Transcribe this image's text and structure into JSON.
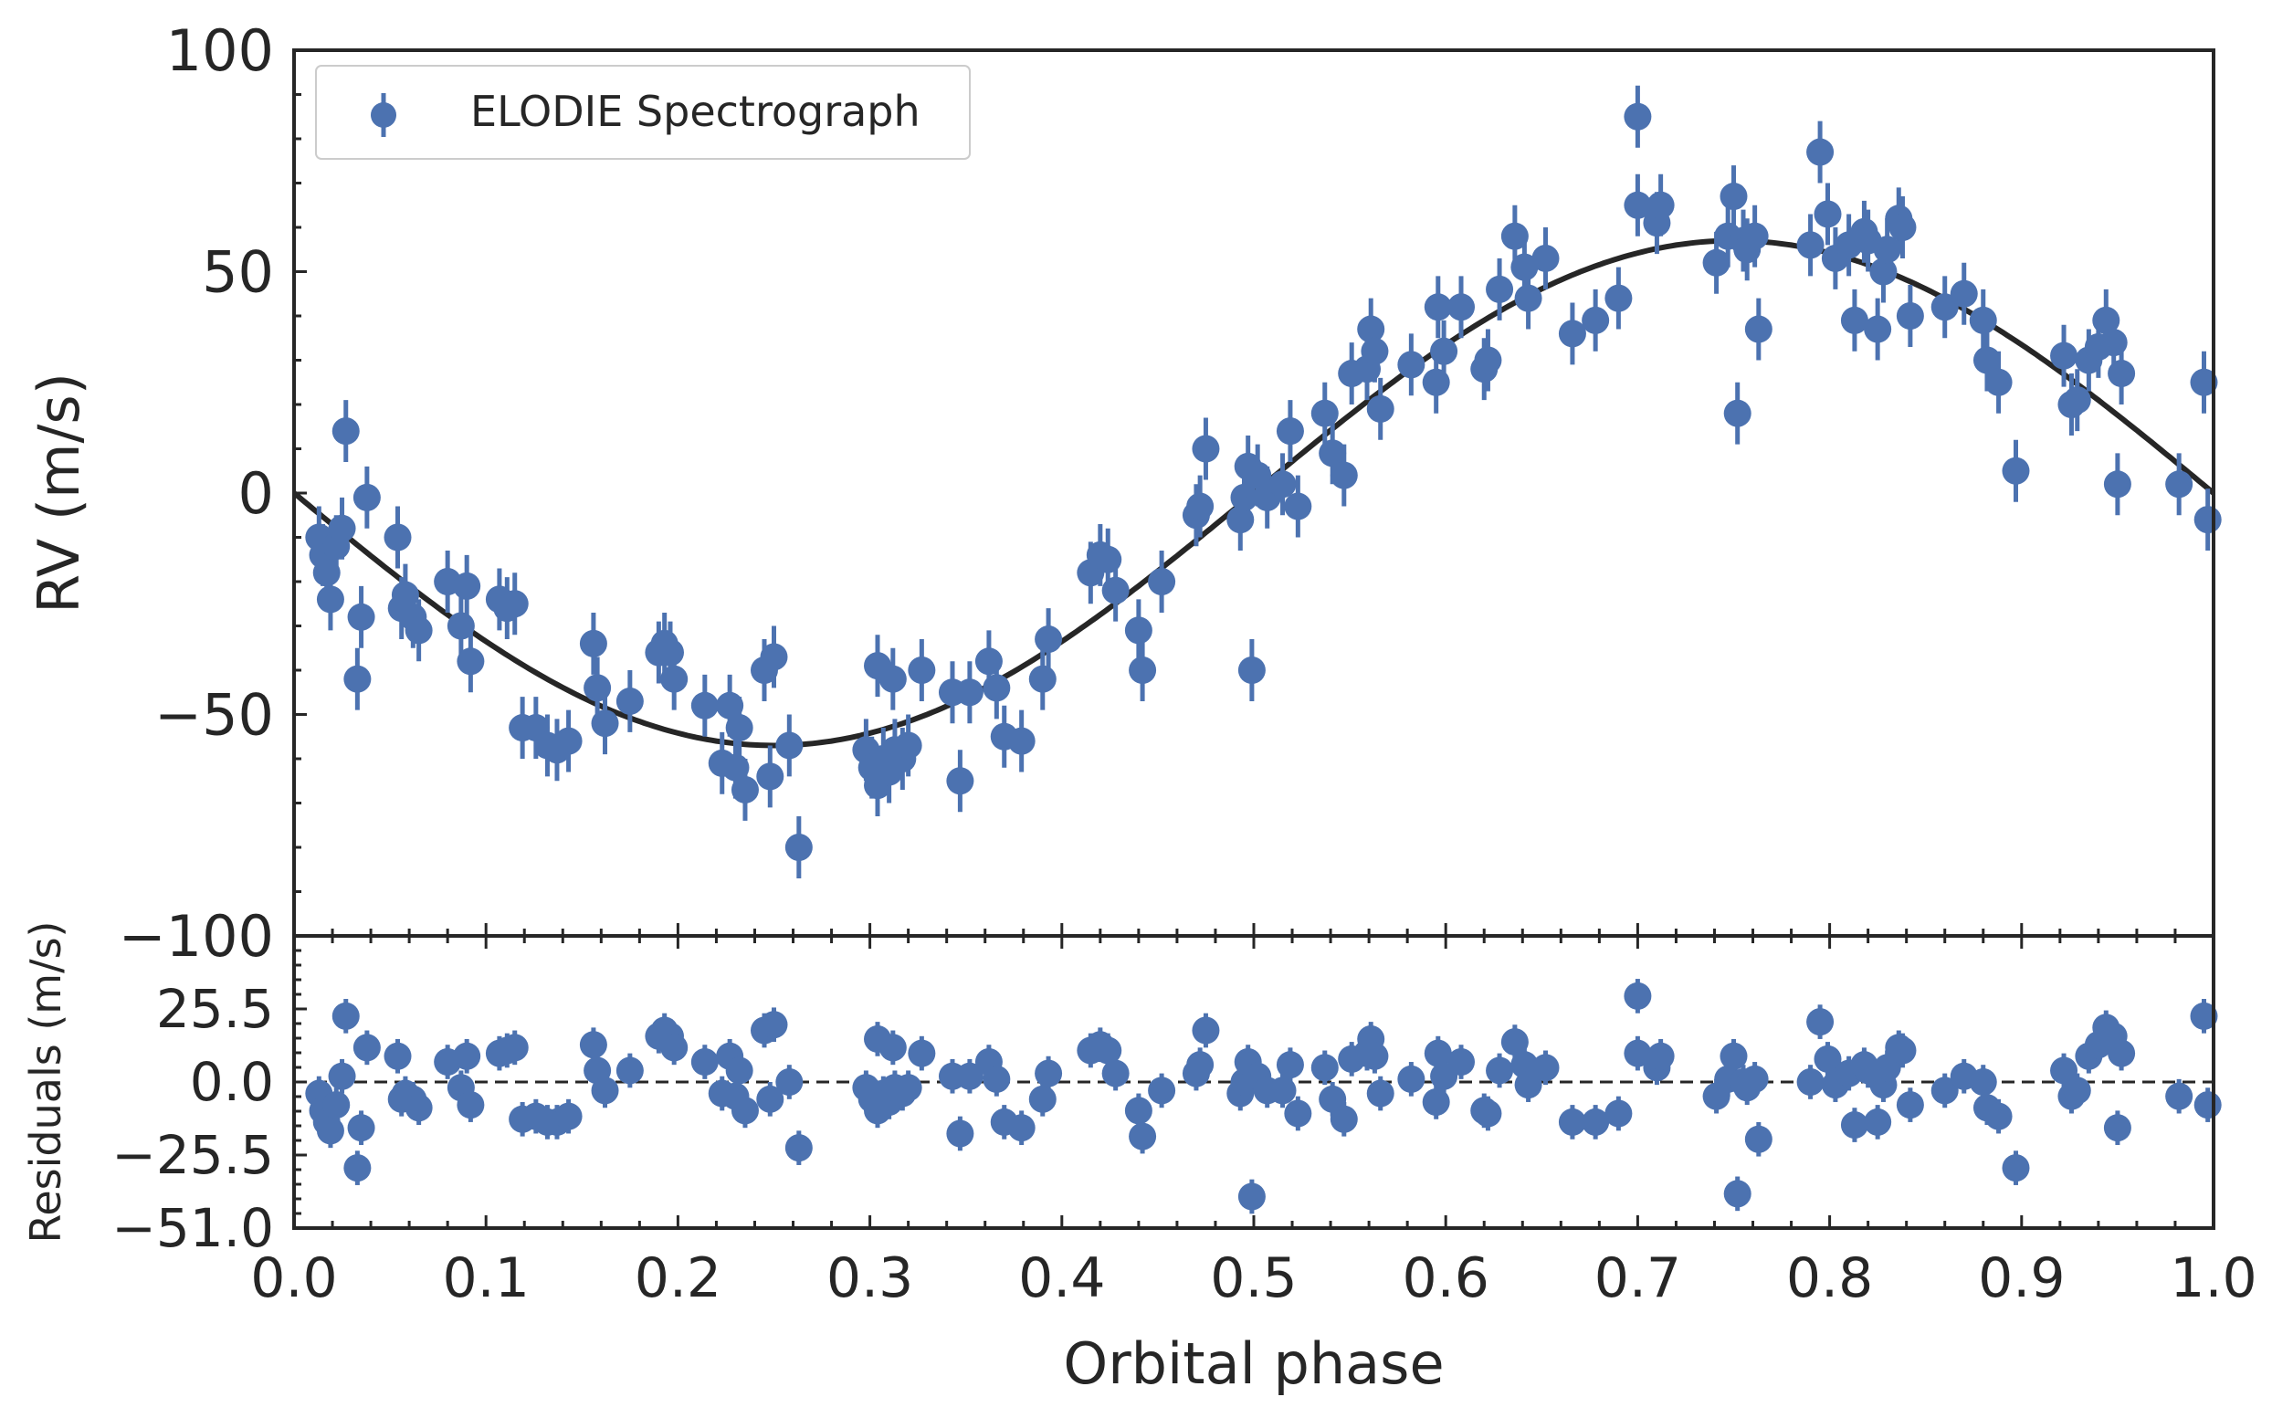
{
  "chart_data": [
    {
      "type": "scatter",
      "panel": "main",
      "ylabel": "RV (m/s)",
      "xlim": [
        0.0,
        1.0
      ],
      "ylim": [
        -100,
        100
      ],
      "yticks": [
        "100",
        "50",
        "0",
        "−50",
        "−100"
      ],
      "ytick_values": [
        100,
        50,
        0,
        -50,
        -100
      ],
      "legend": {
        "placement": "top-left",
        "label": "ELODIE Spectrograph"
      },
      "model": {
        "type": "sine",
        "amplitude": 57,
        "description": "Keplerian fit"
      },
      "colors": {
        "points": "#4c72b0",
        "model": "#262626"
      },
      "error": 7,
      "points": [
        [
          0.013,
          -10
        ],
        [
          0.015,
          -14
        ],
        [
          0.017,
          -18
        ],
        [
          0.019,
          -24
        ],
        [
          0.022,
          -12
        ],
        [
          0.025,
          -8
        ],
        [
          0.027,
          14
        ],
        [
          0.033,
          -42
        ],
        [
          0.035,
          -28
        ],
        [
          0.038,
          -1
        ],
        [
          0.054,
          -10
        ],
        [
          0.056,
          -26
        ],
        [
          0.058,
          -23
        ],
        [
          0.062,
          -28
        ],
        [
          0.065,
          -31
        ],
        [
          0.08,
          -20
        ],
        [
          0.087,
          -30
        ],
        [
          0.09,
          -21
        ],
        [
          0.092,
          -38
        ],
        [
          0.107,
          -24
        ],
        [
          0.111,
          -26
        ],
        [
          0.115,
          -25
        ],
        [
          0.119,
          -53
        ],
        [
          0.126,
          -53
        ],
        [
          0.132,
          -57
        ],
        [
          0.137,
          -58
        ],
        [
          0.143,
          -56
        ],
        [
          0.156,
          -34
        ],
        [
          0.158,
          -44
        ],
        [
          0.162,
          -52
        ],
        [
          0.175,
          -47
        ],
        [
          0.19,
          -36
        ],
        [
          0.193,
          -34
        ],
        [
          0.196,
          -36
        ],
        [
          0.198,
          -42
        ],
        [
          0.214,
          -48
        ],
        [
          0.223,
          -61
        ],
        [
          0.227,
          -48
        ],
        [
          0.23,
          -62
        ],
        [
          0.232,
          -53
        ],
        [
          0.235,
          -67
        ],
        [
          0.245,
          -40
        ],
        [
          0.248,
          -64
        ],
        [
          0.25,
          -37
        ],
        [
          0.258,
          -57
        ],
        [
          0.263,
          -80
        ],
        [
          0.298,
          -58
        ],
        [
          0.301,
          -62
        ],
        [
          0.304,
          -66
        ],
        [
          0.307,
          -60
        ],
        [
          0.31,
          -63
        ],
        [
          0.313,
          -58
        ],
        [
          0.317,
          -60
        ],
        [
          0.32,
          -57
        ],
        [
          0.304,
          -39
        ],
        [
          0.312,
          -42
        ],
        [
          0.327,
          -40
        ],
        [
          0.343,
          -45
        ],
        [
          0.347,
          -65
        ],
        [
          0.352,
          -45
        ],
        [
          0.362,
          -38
        ],
        [
          0.366,
          -44
        ],
        [
          0.37,
          -55
        ],
        [
          0.379,
          -56
        ],
        [
          0.39,
          -42
        ],
        [
          0.393,
          -33
        ],
        [
          0.415,
          -18
        ],
        [
          0.42,
          -14
        ],
        [
          0.424,
          -15
        ],
        [
          0.428,
          -22
        ],
        [
          0.44,
          -31
        ],
        [
          0.442,
          -40
        ],
        [
          0.452,
          -20
        ],
        [
          0.47,
          -5
        ],
        [
          0.472,
          -3
        ],
        [
          0.475,
          10
        ],
        [
          0.493,
          -6
        ],
        [
          0.495,
          -1
        ],
        [
          0.497,
          6
        ],
        [
          0.499,
          -40
        ],
        [
          0.502,
          4
        ],
        [
          0.507,
          -1
        ],
        [
          0.515,
          2
        ],
        [
          0.519,
          14
        ],
        [
          0.523,
          -3
        ],
        [
          0.537,
          18
        ],
        [
          0.541,
          9
        ],
        [
          0.547,
          4
        ],
        [
          0.551,
          27
        ],
        [
          0.559,
          28
        ],
        [
          0.561,
          37
        ],
        [
          0.563,
          32
        ],
        [
          0.566,
          19
        ],
        [
          0.582,
          29
        ],
        [
          0.595,
          25
        ],
        [
          0.596,
          42
        ],
        [
          0.599,
          32
        ],
        [
          0.608,
          42
        ],
        [
          0.62,
          28
        ],
        [
          0.622,
          30
        ],
        [
          0.628,
          46
        ],
        [
          0.636,
          58
        ],
        [
          0.641,
          51
        ],
        [
          0.643,
          44
        ],
        [
          0.652,
          53
        ],
        [
          0.666,
          36
        ],
        [
          0.678,
          39
        ],
        [
          0.69,
          44
        ],
        [
          0.7,
          85
        ],
        [
          0.7,
          65
        ],
        [
          0.71,
          61
        ],
        [
          0.712,
          65
        ],
        [
          0.741,
          52
        ],
        [
          0.747,
          58
        ],
        [
          0.75,
          67
        ],
        [
          0.752,
          18
        ],
        [
          0.755,
          57
        ],
        [
          0.757,
          55
        ],
        [
          0.761,
          58
        ],
        [
          0.763,
          37
        ],
        [
          0.79,
          56
        ],
        [
          0.795,
          77
        ],
        [
          0.799,
          63
        ],
        [
          0.803,
          53
        ],
        [
          0.81,
          56
        ],
        [
          0.813,
          39
        ],
        [
          0.818,
          59
        ],
        [
          0.82,
          57
        ],
        [
          0.825,
          37
        ],
        [
          0.828,
          50
        ],
        [
          0.83,
          55
        ],
        [
          0.836,
          62
        ],
        [
          0.838,
          60
        ],
        [
          0.842,
          40
        ],
        [
          0.86,
          42
        ],
        [
          0.87,
          45
        ],
        [
          0.88,
          39
        ],
        [
          0.882,
          30
        ],
        [
          0.888,
          25
        ],
        [
          0.897,
          5
        ],
        [
          0.922,
          31
        ],
        [
          0.926,
          20
        ],
        [
          0.929,
          21
        ],
        [
          0.935,
          30
        ],
        [
          0.94,
          33
        ],
        [
          0.944,
          39
        ],
        [
          0.948,
          34
        ],
        [
          0.95,
          2
        ],
        [
          0.952,
          27
        ],
        [
          0.982,
          2
        ],
        [
          0.995,
          25
        ],
        [
          0.997,
          -6
        ]
      ]
    },
    {
      "type": "scatter",
      "panel": "residuals",
      "xlabel": "Orbital phase",
      "ylabel": "Residuals (m/s)",
      "xlim": [
        0.0,
        1.0
      ],
      "ylim": [
        -51.0,
        51.0
      ],
      "xticks": [
        "0.0",
        "0.1",
        "0.2",
        "0.3",
        "0.4",
        "0.5",
        "0.6",
        "0.7",
        "0.8",
        "0.9",
        "1.0"
      ],
      "xtick_values": [
        0.0,
        0.1,
        0.2,
        0.3,
        0.4,
        0.5,
        0.6,
        0.7,
        0.8,
        0.9,
        1.0
      ],
      "yticks": [
        "25.5",
        "0.0",
        "−25.5",
        "−51.0"
      ],
      "ytick_values": [
        25.5,
        0,
        -25.5,
        -51.0
      ],
      "zero_line": "dashed",
      "error": 6,
      "points": [
        [
          0.013,
          -4
        ],
        [
          0.015,
          -10
        ],
        [
          0.017,
          -14
        ],
        [
          0.019,
          -17
        ],
        [
          0.022,
          -8
        ],
        [
          0.025,
          2
        ],
        [
          0.027,
          23
        ],
        [
          0.033,
          -30
        ],
        [
          0.035,
          -16
        ],
        [
          0.038,
          12
        ],
        [
          0.054,
          9
        ],
        [
          0.056,
          -6
        ],
        [
          0.058,
          -4
        ],
        [
          0.062,
          -6
        ],
        [
          0.065,
          -9
        ],
        [
          0.08,
          7
        ],
        [
          0.087,
          -2
        ],
        [
          0.09,
          9
        ],
        [
          0.092,
          -8
        ],
        [
          0.107,
          10
        ],
        [
          0.111,
          11
        ],
        [
          0.115,
          12
        ],
        [
          0.119,
          -13
        ],
        [
          0.126,
          -12
        ],
        [
          0.132,
          -14
        ],
        [
          0.137,
          -14
        ],
        [
          0.143,
          -12
        ],
        [
          0.156,
          13
        ],
        [
          0.158,
          4
        ],
        [
          0.162,
          -3
        ],
        [
          0.175,
          4
        ],
        [
          0.19,
          16
        ],
        [
          0.193,
          18
        ],
        [
          0.196,
          16
        ],
        [
          0.198,
          12
        ],
        [
          0.214,
          7
        ],
        [
          0.223,
          -4
        ],
        [
          0.227,
          9
        ],
        [
          0.23,
          -5
        ],
        [
          0.232,
          4
        ],
        [
          0.235,
          -10
        ],
        [
          0.245,
          18
        ],
        [
          0.248,
          -6
        ],
        [
          0.25,
          20
        ],
        [
          0.258,
          0
        ],
        [
          0.263,
          -23
        ],
        [
          0.298,
          -2
        ],
        [
          0.301,
          -6
        ],
        [
          0.304,
          -10
        ],
        [
          0.307,
          -4
        ],
        [
          0.31,
          -7
        ],
        [
          0.313,
          -2
        ],
        [
          0.317,
          -4
        ],
        [
          0.32,
          -2
        ],
        [
          0.304,
          15
        ],
        [
          0.312,
          12
        ],
        [
          0.327,
          10
        ],
        [
          0.343,
          2
        ],
        [
          0.347,
          -18
        ],
        [
          0.352,
          2
        ],
        [
          0.362,
          7
        ],
        [
          0.366,
          1
        ],
        [
          0.37,
          -14
        ],
        [
          0.379,
          -16
        ],
        [
          0.39,
          -6
        ],
        [
          0.393,
          3
        ],
        [
          0.415,
          11
        ],
        [
          0.42,
          13
        ],
        [
          0.424,
          11
        ],
        [
          0.428,
          3
        ],
        [
          0.44,
          -10
        ],
        [
          0.442,
          -19
        ],
        [
          0.452,
          -3
        ],
        [
          0.47,
          3
        ],
        [
          0.472,
          6
        ],
        [
          0.475,
          18
        ],
        [
          0.493,
          -4
        ],
        [
          0.495,
          0
        ],
        [
          0.497,
          7
        ],
        [
          0.499,
          -40
        ],
        [
          0.502,
          2
        ],
        [
          0.507,
          -3
        ],
        [
          0.515,
          -3
        ],
        [
          0.519,
          6
        ],
        [
          0.523,
          -11
        ],
        [
          0.537,
          5
        ],
        [
          0.541,
          -6
        ],
        [
          0.547,
          -13
        ],
        [
          0.551,
          8
        ],
        [
          0.559,
          10
        ],
        [
          0.561,
          15
        ],
        [
          0.563,
          9
        ],
        [
          0.566,
          -4
        ],
        [
          0.582,
          1
        ],
        [
          0.595,
          -7
        ],
        [
          0.596,
          10
        ],
        [
          0.599,
          2
        ],
        [
          0.608,
          7
        ],
        [
          0.62,
          -10
        ],
        [
          0.622,
          -11
        ],
        [
          0.628,
          4
        ],
        [
          0.636,
          14
        ],
        [
          0.641,
          6
        ],
        [
          0.643,
          -1
        ],
        [
          0.652,
          5
        ],
        [
          0.666,
          -14
        ],
        [
          0.678,
          -14
        ],
        [
          0.69,
          -11
        ],
        [
          0.7,
          30
        ],
        [
          0.7,
          10
        ],
        [
          0.71,
          5
        ],
        [
          0.712,
          9
        ],
        [
          0.741,
          -5
        ],
        [
          0.747,
          1
        ],
        [
          0.75,
          9
        ],
        [
          0.752,
          -39
        ],
        [
          0.755,
          0
        ],
        [
          0.757,
          -2
        ],
        [
          0.761,
          1
        ],
        [
          0.763,
          -20
        ],
        [
          0.79,
          0
        ],
        [
          0.795,
          21
        ],
        [
          0.799,
          8
        ],
        [
          0.803,
          -1
        ],
        [
          0.81,
          3
        ],
        [
          0.813,
          -15
        ],
        [
          0.818,
          6
        ],
        [
          0.82,
          4
        ],
        [
          0.825,
          -14
        ],
        [
          0.828,
          -1
        ],
        [
          0.83,
          5
        ],
        [
          0.836,
          12
        ],
        [
          0.838,
          11
        ],
        [
          0.842,
          -8
        ],
        [
          0.86,
          -3
        ],
        [
          0.87,
          2
        ],
        [
          0.88,
          0
        ],
        [
          0.882,
          -9
        ],
        [
          0.888,
          -12
        ],
        [
          0.897,
          -30
        ],
        [
          0.922,
          4
        ],
        [
          0.926,
          -5
        ],
        [
          0.929,
          -3
        ],
        [
          0.935,
          9
        ],
        [
          0.94,
          13
        ],
        [
          0.944,
          19
        ],
        [
          0.948,
          16
        ],
        [
          0.95,
          -16
        ],
        [
          0.952,
          10
        ],
        [
          0.982,
          -5
        ],
        [
          0.995,
          23
        ],
        [
          0.997,
          -8
        ]
      ]
    }
  ]
}
